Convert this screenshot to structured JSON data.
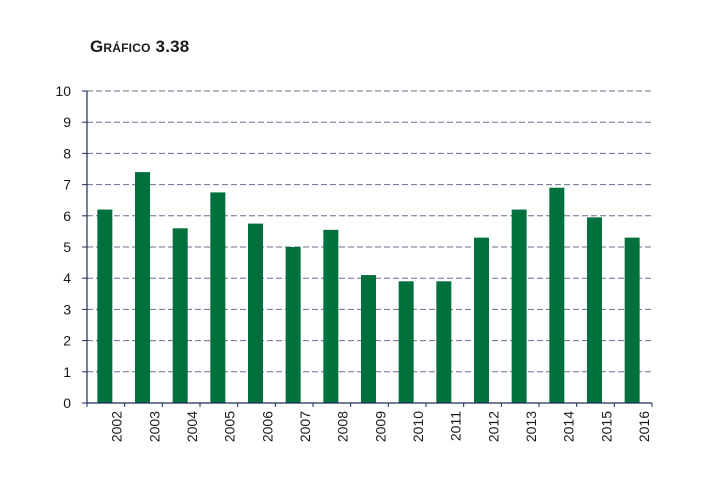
{
  "title": "Gráfico 3.38",
  "chart_data": {
    "type": "bar",
    "categories": [
      "2002",
      "2003",
      "2004",
      "2005",
      "2006",
      "2007",
      "2008",
      "2009",
      "2010",
      "2011",
      "2012",
      "2013",
      "2014",
      "2015",
      "2016"
    ],
    "values": [
      6.2,
      7.4,
      5.6,
      6.75,
      5.75,
      5.0,
      5.55,
      4.1,
      3.9,
      3.9,
      5.3,
      6.2,
      6.9,
      5.95,
      5.3
    ],
    "title": "Gráfico 3.38",
    "xlabel": "",
    "ylabel": "",
    "ylim": [
      0,
      10
    ],
    "yticks": [
      0,
      1,
      2,
      3,
      4,
      5,
      6,
      7,
      8,
      9,
      10
    ],
    "grid": true,
    "bar_color": "#00703c",
    "grid_color": "#6b6f8f",
    "axis_color": "#1f2d5a"
  }
}
